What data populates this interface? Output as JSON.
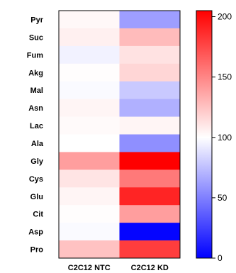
{
  "chart_data": {
    "type": "heatmap",
    "rows": [
      "Pyr",
      "Suc",
      "Fum",
      "Akg",
      "Mal",
      "Asn",
      "Lac",
      "Ala",
      "Gly",
      "Cys",
      "Glu",
      "Cit",
      "Asp",
      "Pro"
    ],
    "columns": [
      "C2C12 NTC",
      "C2C12 KD"
    ],
    "values": [
      [
        103,
        62
      ],
      [
        106,
        128
      ],
      [
        95,
        112
      ],
      [
        101,
        117
      ],
      [
        98,
        79
      ],
      [
        104,
        69
      ],
      [
        102,
        104
      ],
      [
        100,
        56
      ],
      [
        140,
        205
      ],
      [
        111,
        155
      ],
      [
        104,
        190
      ],
      [
        101,
        140
      ],
      [
        98,
        2
      ],
      [
        125,
        180
      ]
    ],
    "colorbar": {
      "min": 0,
      "max": 205,
      "ticks": [
        0,
        50,
        100,
        150,
        200
      ],
      "colors": {
        "low": "#0000ff",
        "mid": "#ffffff",
        "high": "#ff0000"
      }
    },
    "title": "",
    "xlabel": "",
    "ylabel": ""
  }
}
